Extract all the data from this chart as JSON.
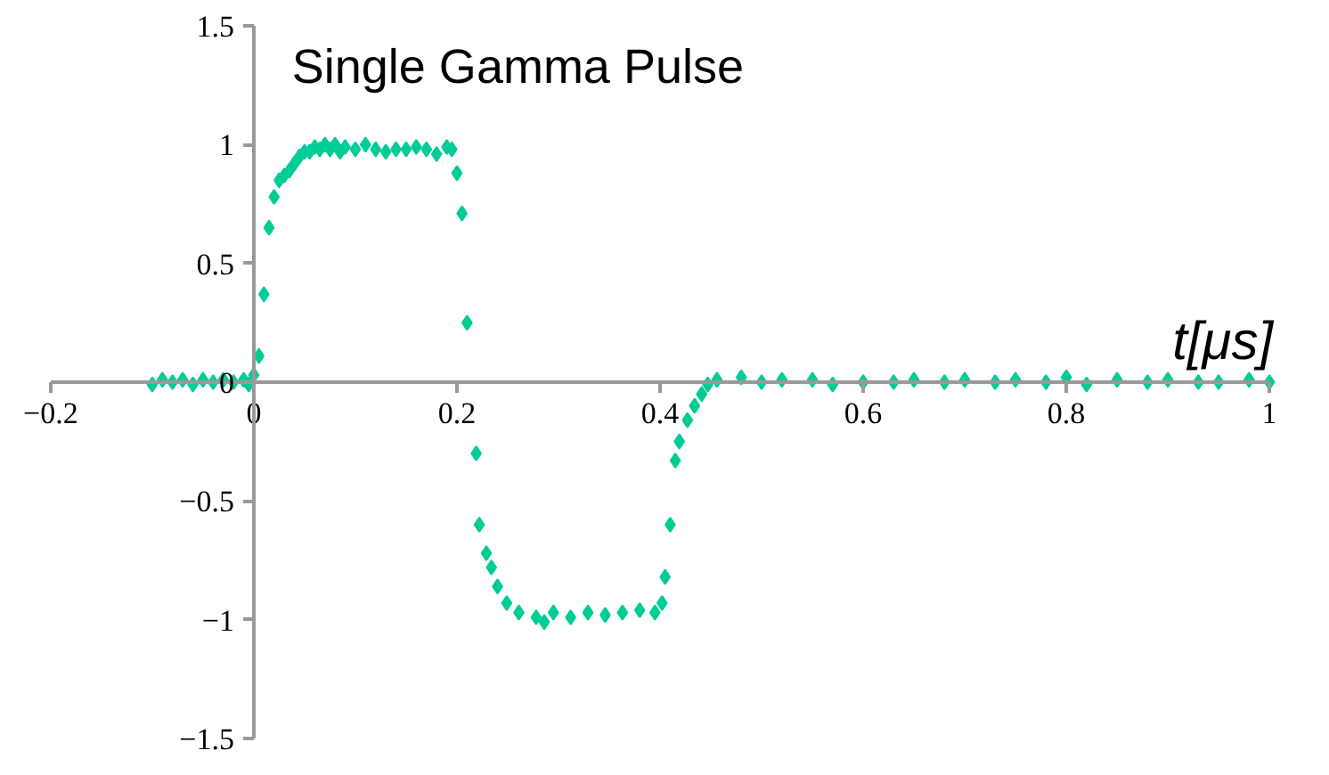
{
  "chart_data": {
    "type": "scatter",
    "title": "Single Gamma Pulse",
    "xlabel": "t[μs]",
    "xlim": [
      -0.2,
      1
    ],
    "ylim": [
      -1.5,
      1.5
    ],
    "xticks": [
      -0.2,
      0,
      0.2,
      0.4,
      0.6,
      0.8,
      1
    ],
    "yticks": [
      -1.5,
      -1,
      -0.5,
      0,
      0.5,
      1,
      1.5
    ],
    "marker": "diamond",
    "series": [
      {
        "color": "#00cc96",
        "x": [
          -0.1,
          -0.09,
          -0.08,
          -0.07,
          -0.06,
          -0.05,
          -0.04,
          -0.03,
          -0.02,
          -0.01,
          -0.005,
          0,
          0.005,
          0.01,
          0.015,
          0.02,
          0.025,
          0.03,
          0.035,
          0.04,
          0.045,
          0.05,
          0.055,
          0.06,
          0.065,
          0.07,
          0.075,
          0.08,
          0.085,
          0.09,
          0.1,
          0.11,
          0.12,
          0.13,
          0.14,
          0.15,
          0.16,
          0.17,
          0.18,
          0.19,
          0.195,
          0.2,
          0.205,
          0.21,
          0.219,
          0.222,
          0.229,
          0.234,
          0.24,
          0.249,
          0.261,
          0.278,
          0.286,
          0.295,
          0.312,
          0.329,
          0.346,
          0.363,
          0.38,
          0.395,
          0.402,
          0.405,
          0.41,
          0.415,
          0.419,
          0.427,
          0.434,
          0.441,
          0.447,
          0.456,
          0.48,
          0.5,
          0.52,
          0.55,
          0.57,
          0.6,
          0.63,
          0.65,
          0.68,
          0.7,
          0.73,
          0.75,
          0.78,
          0.8,
          0.82,
          0.85,
          0.88,
          0.9,
          0.93,
          0.95,
          0.98,
          1.0
        ],
        "values": [
          -0.01,
          0.01,
          0,
          0.01,
          -0.01,
          0.01,
          0,
          0.01,
          0,
          0.01,
          -0.01,
          0.03,
          0.11,
          0.37,
          0.65,
          0.78,
          0.85,
          0.87,
          0.89,
          0.92,
          0.95,
          0.97,
          0.97,
          0.99,
          0.98,
          1.0,
          0.98,
          1.0,
          0.97,
          0.99,
          0.98,
          1.0,
          0.98,
          0.97,
          0.98,
          0.98,
          0.99,
          0.98,
          0.96,
          0.99,
          0.98,
          0.88,
          0.71,
          0.25,
          -0.3,
          -0.6,
          -0.72,
          -0.78,
          -0.86,
          -0.93,
          -0.97,
          -0.99,
          -1.01,
          -0.97,
          -0.99,
          -0.97,
          -0.98,
          -0.97,
          -0.96,
          -0.97,
          -0.93,
          -0.82,
          -0.6,
          -0.33,
          -0.25,
          -0.16,
          -0.1,
          -0.05,
          -0.01,
          0.01,
          0.02,
          0,
          0.01,
          0.01,
          -0.01,
          0,
          0,
          0.01,
          0,
          0.01,
          0,
          0.01,
          0,
          0.02,
          -0.01,
          0.01,
          0,
          0.01,
          0,
          0,
          0.01,
          0
        ]
      }
    ]
  }
}
